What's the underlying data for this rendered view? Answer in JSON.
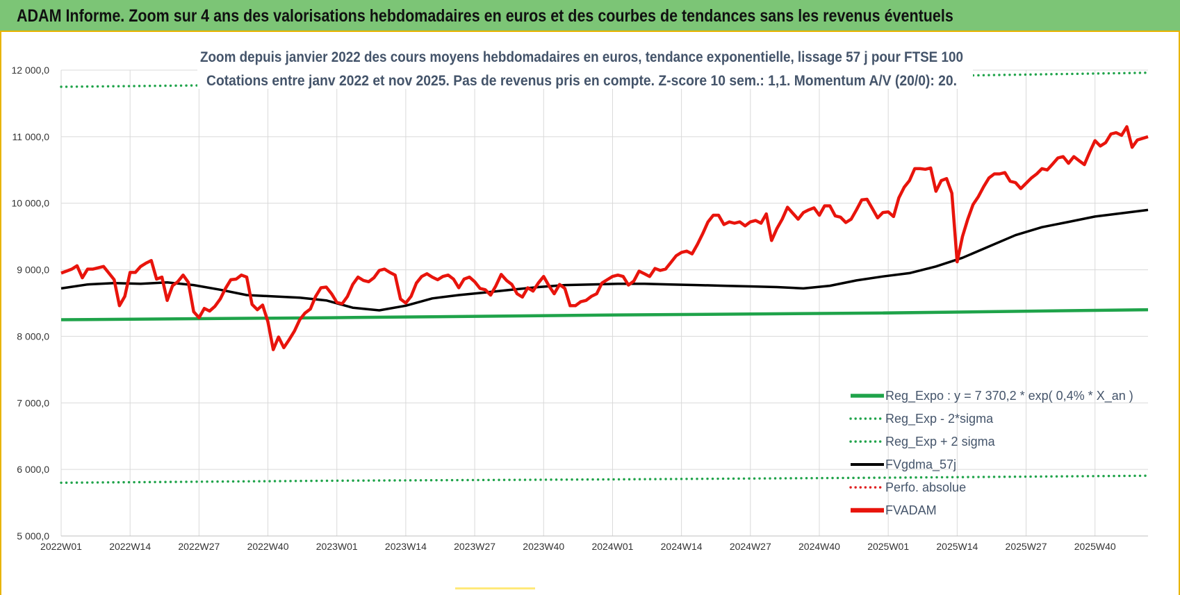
{
  "banner": {
    "title": "ADAM Informe. Zoom sur 4 ans des valorisations hebdomadaires en euros et des courbes de tendances sans les revenus éventuels"
  },
  "chart_data": {
    "type": "line",
    "title": "Zoom depuis janvier 2022 des cours moyens hebdomadaires en euros, tendance exponentielle, lissage 57 j pour FTSE 100",
    "subtitle": "Cotations entre janv 2022 et nov 2025. Pas de revenus pris en compte. Z-score 10 sem.: 1,1. Momentum A/V (20/0): 20.",
    "xlabel": "",
    "ylabel": "",
    "ylim": [
      5000,
      12000
    ],
    "yticks": [
      "5 000,0",
      "6 000,0",
      "7 000,0",
      "8 000,0",
      "9 000,0",
      "10 000,0",
      "11 000,0",
      "12 000,0"
    ],
    "xticks": [
      "2022W01",
      "2022W14",
      "2022W27",
      "2022W40",
      "2023W01",
      "2023W14",
      "2023W27",
      "2023W40",
      "2024W01",
      "2024W14",
      "2024W27",
      "2024W40",
      "2025W01",
      "2025W14",
      "2025W27",
      "2025W40"
    ],
    "week_count": 206,
    "grid": true,
    "legend_position": "bottom-right",
    "series": [
      {
        "name": "Reg_Expo : y = 7 370,2 * exp( 0,4% *  X_an )",
        "color": "#1fa34a",
        "style": "solid",
        "points": [
          [
            0,
            8250
          ],
          [
            51,
            8280
          ],
          [
            103,
            8320
          ],
          [
            154,
            8350
          ],
          [
            205,
            8400
          ]
        ]
      },
      {
        "name": "Reg_Exp - 2*sigma",
        "color": "#1fa34a",
        "style": "dotted",
        "points": [
          [
            0,
            5800
          ],
          [
            51,
            5830
          ],
          [
            103,
            5850
          ],
          [
            154,
            5875
          ],
          [
            205,
            5905
          ]
        ]
      },
      {
        "name": "Reg_Exp + 2 sigma",
        "color": "#1fa34a",
        "style": "dotted",
        "points": [
          [
            0,
            11750
          ],
          [
            51,
            11790
          ],
          [
            103,
            11850
          ],
          [
            154,
            11900
          ],
          [
            205,
            11960
          ]
        ]
      },
      {
        "name": "FVgdma_57j",
        "color": "#000000",
        "style": "solid",
        "points": [
          [
            0,
            8720
          ],
          [
            5,
            8780
          ],
          [
            10,
            8800
          ],
          [
            15,
            8790
          ],
          [
            20,
            8810
          ],
          [
            25,
            8770
          ],
          [
            30,
            8700
          ],
          [
            35,
            8620
          ],
          [
            40,
            8600
          ],
          [
            45,
            8580
          ],
          [
            50,
            8540
          ],
          [
            55,
            8430
          ],
          [
            60,
            8390
          ],
          [
            65,
            8460
          ],
          [
            70,
            8570
          ],
          [
            75,
            8620
          ],
          [
            80,
            8660
          ],
          [
            85,
            8700
          ],
          [
            90,
            8740
          ],
          [
            95,
            8770
          ],
          [
            100,
            8780
          ],
          [
            105,
            8790
          ],
          [
            110,
            8790
          ],
          [
            115,
            8780
          ],
          [
            120,
            8770
          ],
          [
            125,
            8760
          ],
          [
            130,
            8750
          ],
          [
            135,
            8740
          ],
          [
            140,
            8720
          ],
          [
            145,
            8760
          ],
          [
            150,
            8840
          ],
          [
            155,
            8900
          ],
          [
            160,
            8950
          ],
          [
            165,
            9050
          ],
          [
            170,
            9180
          ],
          [
            175,
            9350
          ],
          [
            180,
            9520
          ],
          [
            185,
            9640
          ],
          [
            190,
            9720
          ],
          [
            195,
            9800
          ],
          [
            200,
            9850
          ],
          [
            205,
            9900
          ]
        ]
      },
      {
        "name": "Perfo. absolue",
        "color": "#e02020",
        "style": "dotted",
        "points": []
      },
      {
        "name": "FVADAM",
        "color": "#e8140c",
        "style": "solid",
        "points": [
          [
            0,
            8950
          ],
          [
            2,
            9010
          ],
          [
            3,
            9060
          ],
          [
            4,
            8880
          ],
          [
            5,
            9010
          ],
          [
            6,
            9010
          ],
          [
            8,
            9050
          ],
          [
            9,
            8950
          ],
          [
            10,
            8850
          ],
          [
            11,
            8460
          ],
          [
            12,
            8600
          ],
          [
            13,
            8960
          ],
          [
            14,
            8960
          ],
          [
            15,
            9050
          ],
          [
            16,
            9100
          ],
          [
            17,
            9140
          ],
          [
            18,
            8860
          ],
          [
            19,
            8890
          ],
          [
            20,
            8540
          ],
          [
            21,
            8760
          ],
          [
            22,
            8820
          ],
          [
            23,
            8920
          ],
          [
            24,
            8810
          ],
          [
            25,
            8370
          ],
          [
            26,
            8280
          ],
          [
            27,
            8420
          ],
          [
            28,
            8380
          ],
          [
            29,
            8450
          ],
          [
            30,
            8560
          ],
          [
            31,
            8720
          ],
          [
            32,
            8850
          ],
          [
            33,
            8860
          ],
          [
            34,
            8920
          ],
          [
            35,
            8890
          ],
          [
            36,
            8480
          ],
          [
            37,
            8400
          ],
          [
            38,
            8470
          ],
          [
            39,
            8220
          ],
          [
            40,
            7800
          ],
          [
            41,
            7990
          ],
          [
            42,
            7830
          ],
          [
            43,
            7950
          ],
          [
            44,
            8080
          ],
          [
            45,
            8250
          ],
          [
            46,
            8350
          ],
          [
            47,
            8410
          ],
          [
            48,
            8600
          ],
          [
            49,
            8730
          ],
          [
            50,
            8740
          ],
          [
            51,
            8640
          ],
          [
            52,
            8510
          ],
          [
            53,
            8490
          ],
          [
            54,
            8600
          ],
          [
            55,
            8780
          ],
          [
            56,
            8890
          ],
          [
            57,
            8840
          ],
          [
            58,
            8820
          ],
          [
            59,
            8880
          ],
          [
            60,
            8990
          ],
          [
            61,
            9010
          ],
          [
            62,
            8960
          ],
          [
            63,
            8920
          ],
          [
            64,
            8560
          ],
          [
            65,
            8500
          ],
          [
            66,
            8600
          ],
          [
            67,
            8800
          ],
          [
            68,
            8900
          ],
          [
            69,
            8940
          ],
          [
            70,
            8890
          ],
          [
            71,
            8850
          ],
          [
            72,
            8900
          ],
          [
            73,
            8920
          ],
          [
            74,
            8860
          ],
          [
            75,
            8730
          ],
          [
            76,
            8860
          ],
          [
            77,
            8890
          ],
          [
            78,
            8820
          ],
          [
            79,
            8720
          ],
          [
            80,
            8700
          ],
          [
            81,
            8620
          ],
          [
            82,
            8760
          ],
          [
            83,
            8930
          ],
          [
            84,
            8840
          ],
          [
            85,
            8780
          ],
          [
            86,
            8640
          ],
          [
            87,
            8590
          ],
          [
            88,
            8730
          ],
          [
            89,
            8680
          ],
          [
            90,
            8800
          ],
          [
            91,
            8900
          ],
          [
            92,
            8760
          ],
          [
            93,
            8640
          ],
          [
            94,
            8780
          ],
          [
            95,
            8720
          ],
          [
            96,
            8460
          ],
          [
            97,
            8460
          ],
          [
            98,
            8520
          ],
          [
            99,
            8540
          ],
          [
            100,
            8600
          ],
          [
            101,
            8640
          ],
          [
            102,
            8800
          ],
          [
            103,
            8850
          ],
          [
            104,
            8900
          ],
          [
            105,
            8920
          ],
          [
            106,
            8900
          ],
          [
            107,
            8770
          ],
          [
            108,
            8830
          ],
          [
            109,
            8980
          ],
          [
            110,
            8940
          ],
          [
            111,
            8900
          ],
          [
            112,
            9020
          ],
          [
            113,
            8990
          ],
          [
            114,
            9010
          ],
          [
            115,
            9110
          ],
          [
            116,
            9210
          ],
          [
            117,
            9260
          ],
          [
            118,
            9280
          ],
          [
            119,
            9240
          ],
          [
            120,
            9380
          ],
          [
            121,
            9540
          ],
          [
            122,
            9720
          ],
          [
            123,
            9820
          ],
          [
            124,
            9820
          ],
          [
            125,
            9680
          ],
          [
            126,
            9720
          ],
          [
            127,
            9700
          ],
          [
            128,
            9720
          ],
          [
            129,
            9660
          ],
          [
            130,
            9720
          ],
          [
            131,
            9740
          ],
          [
            132,
            9700
          ],
          [
            133,
            9840
          ],
          [
            134,
            9440
          ],
          [
            135,
            9620
          ],
          [
            136,
            9760
          ],
          [
            137,
            9940
          ],
          [
            138,
            9850
          ],
          [
            139,
            9760
          ],
          [
            140,
            9860
          ],
          [
            141,
            9900
          ],
          [
            142,
            9930
          ],
          [
            143,
            9820
          ],
          [
            144,
            9960
          ],
          [
            145,
            9960
          ],
          [
            146,
            9810
          ],
          [
            147,
            9790
          ],
          [
            148,
            9710
          ],
          [
            149,
            9760
          ],
          [
            150,
            9900
          ],
          [
            151,
            10050
          ],
          [
            152,
            10060
          ],
          [
            153,
            9920
          ],
          [
            154,
            9780
          ],
          [
            155,
            9860
          ],
          [
            156,
            9870
          ],
          [
            157,
            9800
          ],
          [
            158,
            10080
          ],
          [
            159,
            10240
          ],
          [
            160,
            10340
          ],
          [
            161,
            10520
          ],
          [
            162,
            10520
          ],
          [
            163,
            10510
          ],
          [
            164,
            10530
          ],
          [
            165,
            10180
          ],
          [
            166,
            10340
          ],
          [
            167,
            10370
          ],
          [
            168,
            10150
          ],
          [
            169,
            9120
          ],
          [
            170,
            9500
          ],
          [
            171,
            9760
          ],
          [
            172,
            9980
          ],
          [
            173,
            10100
          ],
          [
            174,
            10250
          ],
          [
            175,
            10380
          ],
          [
            176,
            10440
          ],
          [
            177,
            10440
          ],
          [
            178,
            10460
          ],
          [
            179,
            10330
          ],
          [
            180,
            10310
          ],
          [
            181,
            10220
          ],
          [
            182,
            10300
          ],
          [
            183,
            10380
          ],
          [
            184,
            10440
          ],
          [
            185,
            10520
          ],
          [
            186,
            10500
          ],
          [
            187,
            10590
          ],
          [
            188,
            10680
          ],
          [
            189,
            10700
          ],
          [
            190,
            10600
          ],
          [
            191,
            10700
          ],
          [
            192,
            10640
          ],
          [
            193,
            10580
          ],
          [
            194,
            10770
          ],
          [
            195,
            10940
          ],
          [
            196,
            10860
          ],
          [
            197,
            10910
          ],
          [
            198,
            11040
          ],
          [
            199,
            11060
          ],
          [
            200,
            11020
          ],
          [
            201,
            11150
          ],
          [
            202,
            10840
          ],
          [
            203,
            10950
          ],
          [
            205,
            11000
          ]
        ]
      }
    ]
  }
}
